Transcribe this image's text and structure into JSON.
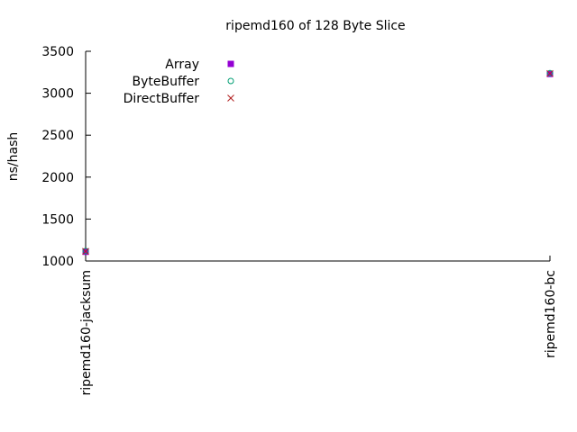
{
  "chart_data": {
    "type": "scatter",
    "title": "ripemd160 of 128 Byte Slice",
    "xlabel": "",
    "ylabel": "ns/hash",
    "categories": [
      "ripemd160-jacksum",
      "ripemd160-bc"
    ],
    "ylim": [
      1000,
      3500
    ],
    "yticks": [
      1000,
      1500,
      2000,
      2500,
      3000,
      3500
    ],
    "grid": false,
    "legend_position": "top-left",
    "series": [
      {
        "name": "Array",
        "values": [
          1110,
          3230
        ],
        "color": "#9400d3",
        "marker": "filled-square"
      },
      {
        "name": "ByteBuffer",
        "values": [
          1120,
          3240
        ],
        "color": "#009e73",
        "marker": "open-circle"
      },
      {
        "name": "DirectBuffer",
        "values": [
          1115,
          3235
        ],
        "color": "#b22222",
        "marker": "cross"
      }
    ]
  }
}
